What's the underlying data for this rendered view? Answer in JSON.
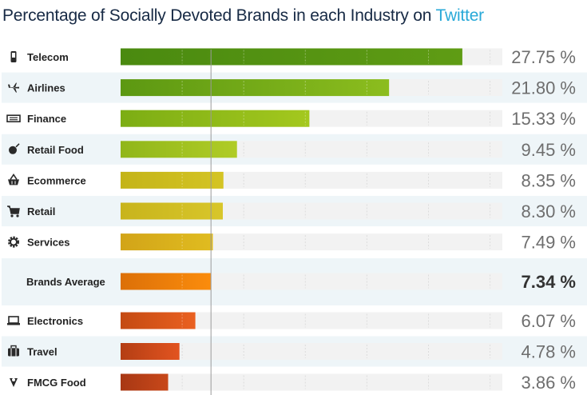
{
  "title": {
    "text": "Percentage of Socially Devoted Brands in each Industry on",
    "highlight": "Twitter"
  },
  "colors": {
    "title": "#172a45",
    "highlight": "#29a9d8",
    "row_alt": "#eef5f8",
    "track": "#f2f2f2",
    "value_text": "#6e6e6e",
    "average_value_text": "#333333",
    "label_text": "#222222"
  },
  "chart_data": {
    "type": "bar",
    "orientation": "horizontal",
    "title": "Percentage of Socially Devoted Brands in each Industry on Twitter",
    "unit": "%",
    "xlim": [
      0,
      32
    ],
    "reference_line": {
      "label": "Brands Average",
      "value": 7.34
    },
    "categories": [
      "Telecom",
      "Airlines",
      "Finance",
      "Retail Food",
      "Ecommerce",
      "Retail",
      "Services",
      "Brands Average",
      "Electronics",
      "Travel",
      "FMCG Food"
    ],
    "values": [
      27.75,
      21.8,
      15.33,
      9.45,
      8.35,
      8.3,
      7.49,
      7.34,
      6.07,
      4.78,
      3.86
    ],
    "value_labels": [
      "27.75 %",
      "21.80 %",
      "15.33 %",
      "9.45 %",
      "8.35 %",
      "8.30 %",
      "7.49 %",
      "7.34 %",
      "6.07 %",
      "4.78 %",
      "3.86 %"
    ],
    "icons": [
      "mobile-phone-icon",
      "airplane-icon",
      "banknote-icon",
      "food-icon",
      "basket-icon",
      "cart-icon",
      "gear-icon",
      "",
      "laptop-icon",
      "suitcase-icon",
      "food-drop-icon"
    ],
    "bar_colors": [
      [
        "#4a8a10",
        "#5f9c14"
      ],
      [
        "#5c9812",
        "#8cbd1e"
      ],
      [
        "#7cad14",
        "#a4c81e"
      ],
      [
        "#90b61a",
        "#b0cc26"
      ],
      [
        "#c4b418",
        "#d4c424"
      ],
      [
        "#c8b41c",
        "#d8c62a"
      ],
      [
        "#d2a418",
        "#e0bc20"
      ],
      [
        "#dc7008",
        "#fb8c0c"
      ],
      [
        "#c44a12",
        "#ea6020"
      ],
      [
        "#b43e14",
        "#e25420"
      ],
      [
        "#a83814",
        "#c8481a"
      ]
    ]
  }
}
